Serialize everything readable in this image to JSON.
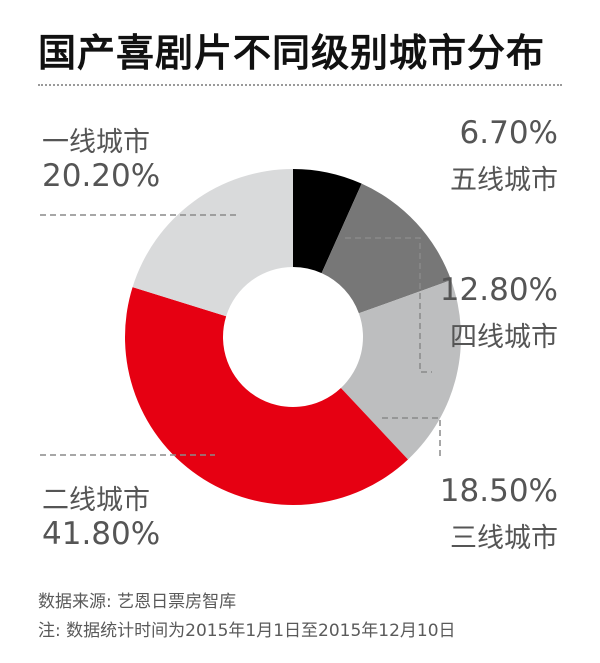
{
  "title": "国产喜剧片不同级别城市分布",
  "colors": {
    "一线城市": "#d9dadb",
    "二线城市": "#e60012",
    "三线城市": "#bdbebf",
    "四线城市": "#777777",
    "五线城市": "#000000"
  },
  "chart_data": {
    "type": "pie",
    "title": "国产喜剧片不同级别城市分布",
    "donut": true,
    "slices": [
      {
        "label": "五线城市",
        "value": 6.7,
        "display": "6.70%"
      },
      {
        "label": "四线城市",
        "value": 12.8,
        "display": "12.80%"
      },
      {
        "label": "三线城市",
        "value": 18.5,
        "display": "18.50%"
      },
      {
        "label": "二线城市",
        "value": 41.8,
        "display": "41.80%"
      },
      {
        "label": "一线城市",
        "value": 20.2,
        "display": "20.20%"
      }
    ]
  },
  "footer": {
    "source": "数据来源: 艺恩日票房智库",
    "note": "注: 数据统计时间为2015年1月1日至2015年12月10日"
  }
}
